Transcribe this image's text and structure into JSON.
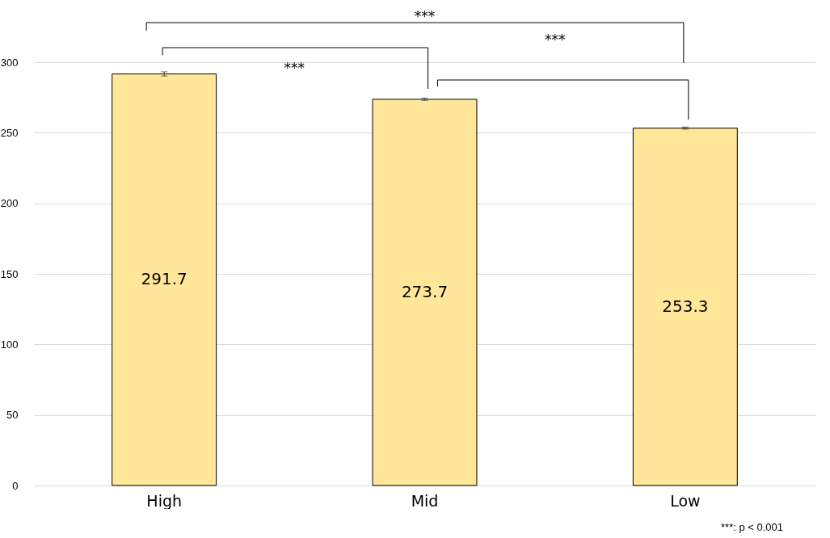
{
  "chart_data": {
    "type": "bar",
    "categories": [
      "High",
      "Mid",
      "Low"
    ],
    "values": [
      291.7,
      273.7,
      253.3
    ],
    "errors": [
      1.5,
      0.8,
      0.8
    ],
    "color": "#ffe699",
    "data_labels": true,
    "ylim": [
      0,
      300
    ],
    "yticks": [
      0,
      50,
      100,
      150,
      200,
      250,
      300
    ],
    "grid": "y",
    "annotations": [
      "***",
      "***",
      "***",
      "***: p < 0.001"
    ]
  }
}
